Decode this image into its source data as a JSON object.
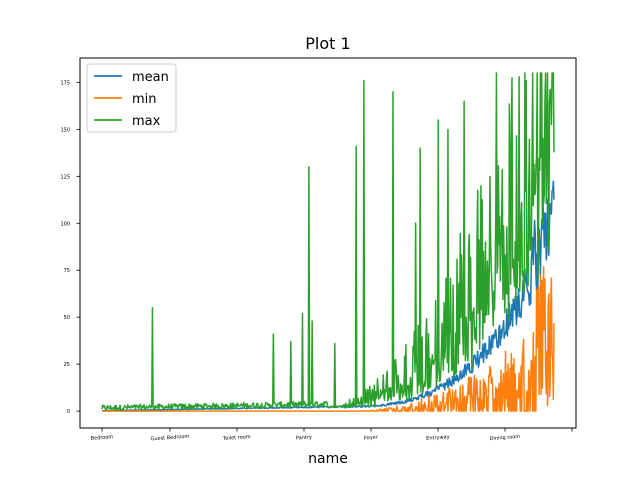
{
  "chart_data": {
    "type": "line",
    "title": "Plot 1",
    "xlabel": "name",
    "ylabel": "",
    "ylim": [
      -9,
      188
    ],
    "yticks": [
      0,
      25,
      50,
      75,
      100,
      125,
      150,
      175
    ],
    "xtick_labels": [
      "Bedroom",
      "Guest Bedroom",
      "Toilet room",
      "Pantry",
      "Foyer",
      "Entryway",
      "Dining room",
      ""
    ],
    "point_count": 700,
    "legend": {
      "placement": "upper-left",
      "entries": [
        "mean",
        "min",
        "max"
      ]
    },
    "series": [
      {
        "name": "mean",
        "color": "#1f77b4",
        "summary": "rises slowly from about 0 to about 10 by Entryway, then climbs steeply to about 120 at the end"
      },
      {
        "name": "min",
        "color": "#ff7f0e",
        "summary": "near 0 until about Foyer, then noisy up to about 80 at the end"
      },
      {
        "name": "max",
        "color": "#2ca02c",
        "summary": "noisy near 0-5 with spikes (55 near Guest Bedroom, 130 near Pantry, 176 near Foyer), dense between 0 and 180 after Entryway"
      }
    ],
    "spikes": [
      {
        "idx": 78,
        "value": 55
      },
      {
        "idx": 265,
        "value": 41
      },
      {
        "idx": 292,
        "value": 37
      },
      {
        "idx": 310,
        "value": 52
      },
      {
        "idx": 320,
        "value": 130
      },
      {
        "idx": 325,
        "value": 48
      },
      {
        "idx": 360,
        "value": 36
      },
      {
        "idx": 393,
        "value": 141
      },
      {
        "idx": 405,
        "value": 176
      },
      {
        "idx": 450,
        "value": 170
      },
      {
        "idx": 485,
        "value": 100
      },
      {
        "idx": 492,
        "value": 140
      },
      {
        "idx": 520,
        "value": 155
      },
      {
        "idx": 535,
        "value": 150
      },
      {
        "idx": 560,
        "value": 165
      },
      {
        "idx": 610,
        "value": 180
      },
      {
        "idx": 645,
        "value": 178
      }
    ]
  }
}
